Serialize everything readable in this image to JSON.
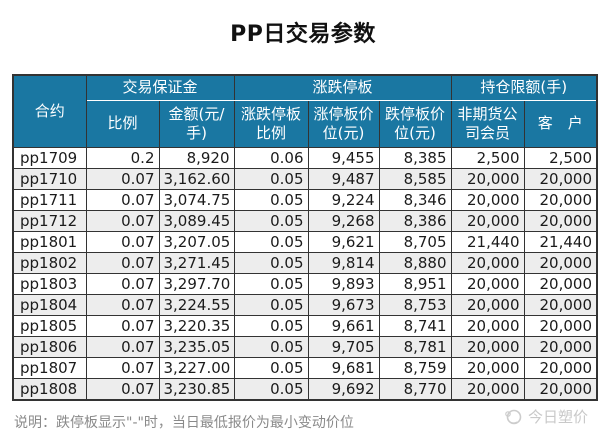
{
  "title": "PP日交易参数",
  "table": {
    "contract_header": "合约",
    "groups": [
      "交易保证金",
      "涨跌停板",
      "持仓限额(手)"
    ],
    "subheaders": [
      "比例",
      "金额(元/手)",
      "涨跌停板比例",
      "涨停板价位(元)",
      "跌停板价位(元)",
      "非期货公司会员",
      "客　户"
    ],
    "rows": [
      [
        "pp1709",
        "0.2",
        "8,920",
        "0.06",
        "9,455",
        "8,385",
        "2,500",
        "2,500"
      ],
      [
        "pp1710",
        "0.07",
        "3,162.60",
        "0.05",
        "9,487",
        "8,585",
        "20,000",
        "20,000"
      ],
      [
        "pp1711",
        "0.07",
        "3,074.75",
        "0.05",
        "9,224",
        "8,346",
        "20,000",
        "20,000"
      ],
      [
        "pp1712",
        "0.07",
        "3,089.45",
        "0.05",
        "9,268",
        "8,386",
        "20,000",
        "20,000"
      ],
      [
        "pp1801",
        "0.07",
        "3,207.05",
        "0.05",
        "9,621",
        "8,705",
        "21,440",
        "21,440"
      ],
      [
        "pp1802",
        "0.07",
        "3,271.45",
        "0.05",
        "9,814",
        "8,880",
        "20,000",
        "20,000"
      ],
      [
        "pp1803",
        "0.07",
        "3,297.70",
        "0.05",
        "9,893",
        "8,951",
        "20,000",
        "20,000"
      ],
      [
        "pp1804",
        "0.07",
        "3,224.55",
        "0.05",
        "9,673",
        "8,753",
        "20,000",
        "20,000"
      ],
      [
        "pp1805",
        "0.07",
        "3,220.35",
        "0.05",
        "9,661",
        "8,741",
        "20,000",
        "20,000"
      ],
      [
        "pp1806",
        "0.07",
        "3,235.05",
        "0.05",
        "9,705",
        "8,781",
        "20,000",
        "20,000"
      ],
      [
        "pp1807",
        "0.07",
        "3,227.00",
        "0.05",
        "9,681",
        "8,759",
        "20,000",
        "20,000"
      ],
      [
        "pp1808",
        "0.07",
        "3,230.85",
        "0.05",
        "9,692",
        "8,770",
        "20,000",
        "20,000"
      ]
    ]
  },
  "footer": {
    "note": "说明：跌停板显示\"-\"时，当日最低报价为最小变动价位"
  },
  "watermark": {
    "text": "今日塑价"
  },
  "colors": {
    "header_bg": "#1a77a2",
    "header_text": "#ffffff",
    "border": "#333333",
    "row_alt": "#ededed",
    "note_color": "#8a8a8a",
    "watermark_color": "#c9c9c9"
  }
}
